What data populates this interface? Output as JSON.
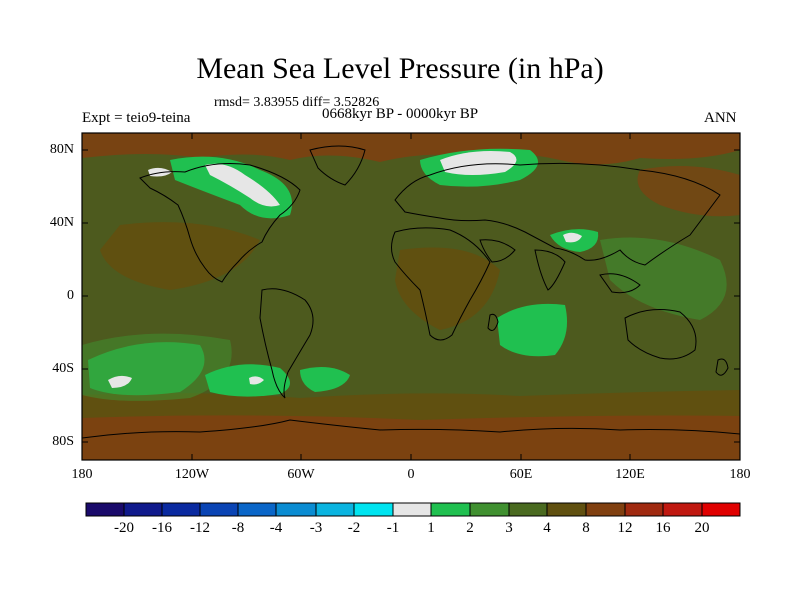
{
  "title": "Mean Sea Level Pressure (in hPa)",
  "stats_line": "rmsd= 3.83955 diff= 3.52826",
  "period_line": "0668kyr BP - 0000kyr BP",
  "expt_line": "Expt = teio9-teina",
  "season": "ANN",
  "lat_labels": [
    "80N",
    "40N",
    "0",
    "40S",
    "80S"
  ],
  "lon_labels": [
    "180",
    "120W",
    "60W",
    "0",
    "60E",
    "120E",
    "180"
  ],
  "colorbar": {
    "labels": [
      "-20",
      "-16",
      "-12",
      "-8",
      "-4",
      "-3",
      "-2",
      "-1",
      "1",
      "2",
      "3",
      "4",
      "8",
      "12",
      "16",
      "20"
    ],
    "colors": [
      "#1a0a6b",
      "#101a8c",
      "#0a2aa0",
      "#0a44b4",
      "#0a66c8",
      "#0a8cd2",
      "#0ab4e0",
      "#00e4f0",
      "#e6e6e6",
      "#20c050",
      "#409030",
      "#4a6a20",
      "#605010",
      "#804010",
      "#a02a10",
      "#c01810",
      "#e00000"
    ]
  },
  "map": {
    "background_color": "#4d5a1e",
    "coast_color": "#000000"
  }
}
